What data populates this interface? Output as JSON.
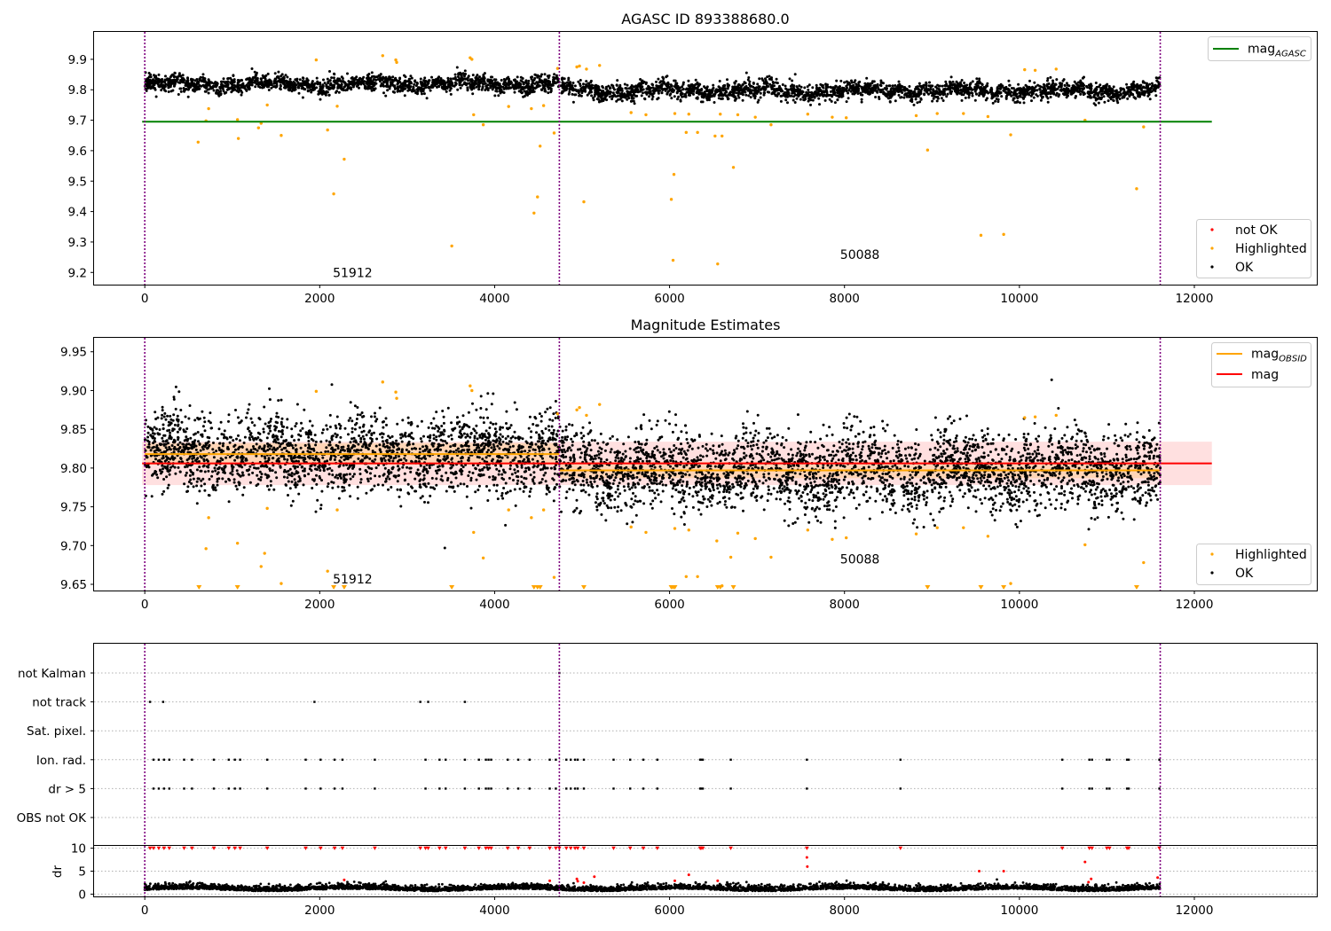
{
  "figure": {
    "title_top": "AGASC ID 893388680.0",
    "title_mid": "Magnitude Estimates"
  },
  "chart_data": [
    {
      "type": "scatter",
      "panel": "top",
      "title": "AGASC ID 893388680.0",
      "xlim": [
        -580,
        13400
      ],
      "ylim": [
        9.16,
        9.99
      ],
      "xticks": [
        0,
        2000,
        4000,
        6000,
        8000,
        10000,
        12000
      ],
      "yticks": [
        9.2,
        9.3,
        9.4,
        9.5,
        9.6,
        9.7,
        9.8,
        9.9
      ],
      "vlines": [
        0,
        4740,
        11610
      ],
      "obs_labels": [
        {
          "text": "51912",
          "x": 2150,
          "y": 9.185
        },
        {
          "text": "50088",
          "x": 7950,
          "y": 9.245
        }
      ],
      "lines": [
        {
          "name": "mag_{AGASC}",
          "color": "#008000",
          "y": 9.695,
          "x0": -30,
          "x1": 12200
        }
      ],
      "legend_lines": [
        "mag",
        "AGASC"
      ],
      "legend_points": [
        "not OK",
        "Highlighted",
        "OK"
      ],
      "colors": {
        "ok": "#000000",
        "highlighted": "#ffa500",
        "not_ok": "#ff0000",
        "vline": "#800080"
      },
      "ok_band": {
        "x": [
          0,
          11610
        ],
        "segments": [
          {
            "x": [
              0,
              4740
            ],
            "mean": 9.818
          },
          {
            "x": [
              4740,
              11610
            ],
            "mean": 9.797
          }
        ],
        "spread": 0.025
      },
      "highlighted": [
        [
          610,
          9.628
        ],
        [
          700,
          9.698
        ],
        [
          730,
          9.738
        ],
        [
          1060,
          9.702
        ],
        [
          1070,
          9.64
        ],
        [
          1300,
          9.675
        ],
        [
          1330,
          9.69
        ],
        [
          1400,
          9.75
        ],
        [
          1560,
          9.65
        ],
        [
          1960,
          9.898
        ],
        [
          2090,
          9.668
        ],
        [
          2160,
          9.458
        ],
        [
          2200,
          9.746
        ],
        [
          2280,
          9.572
        ],
        [
          2720,
          9.912
        ],
        [
          2870,
          9.898
        ],
        [
          2880,
          9.89
        ],
        [
          3510,
          9.287
        ],
        [
          3720,
          9.905
        ],
        [
          3740,
          9.9
        ],
        [
          3760,
          9.718
        ],
        [
          3870,
          9.685
        ],
        [
          4160,
          9.745
        ],
        [
          4420,
          9.738
        ],
        [
          4450,
          9.395
        ],
        [
          4490,
          9.448
        ],
        [
          4520,
          9.615
        ],
        [
          4560,
          9.748
        ],
        [
          4680,
          9.658
        ],
        [
          4720,
          9.87
        ],
        [
          4940,
          9.875
        ],
        [
          4970,
          9.878
        ],
        [
          5020,
          9.432
        ],
        [
          5050,
          9.868
        ],
        [
          5200,
          9.88
        ],
        [
          5560,
          9.725
        ],
        [
          5730,
          9.718
        ],
        [
          6020,
          9.44
        ],
        [
          6040,
          9.24
        ],
        [
          6050,
          9.522
        ],
        [
          6060,
          9.722
        ],
        [
          6190,
          9.66
        ],
        [
          6220,
          9.72
        ],
        [
          6320,
          9.66
        ],
        [
          6520,
          9.648
        ],
        [
          6550,
          9.228
        ],
        [
          6580,
          9.72
        ],
        [
          6600,
          9.648
        ],
        [
          6730,
          9.545
        ],
        [
          6780,
          9.718
        ],
        [
          6980,
          9.71
        ],
        [
          7160,
          9.685
        ],
        [
          7580,
          9.72
        ],
        [
          7860,
          9.71
        ],
        [
          8020,
          9.708
        ],
        [
          8820,
          9.715
        ],
        [
          8950,
          9.602
        ],
        [
          9060,
          9.722
        ],
        [
          9360,
          9.722
        ],
        [
          9560,
          9.322
        ],
        [
          9640,
          9.712
        ],
        [
          9820,
          9.325
        ],
        [
          9900,
          9.652
        ],
        [
          10060,
          9.866
        ],
        [
          10180,
          9.864
        ],
        [
          10420,
          9.868
        ],
        [
          10750,
          9.7
        ],
        [
          11340,
          9.475
        ],
        [
          11420,
          9.678
        ]
      ]
    },
    {
      "type": "scatter",
      "panel": "middle",
      "title": "Magnitude Estimates",
      "xlim": [
        -580,
        13400
      ],
      "ylim": [
        9.642,
        9.968
      ],
      "xticks": [
        0,
        2000,
        4000,
        6000,
        8000,
        10000,
        12000
      ],
      "yticks": [
        9.65,
        9.7,
        9.75,
        9.8,
        9.85,
        9.9,
        9.95
      ],
      "ytick_labels": [
        "9.65",
        "9.70",
        "9.75",
        "9.80",
        "9.85",
        "9.90",
        "9.95"
      ],
      "vlines": [
        0,
        4740,
        11610
      ],
      "obs_labels": [
        {
          "text": "51912",
          "x": 2150,
          "y": 9.651
        },
        {
          "text": "50088",
          "x": 7950,
          "y": 9.677
        }
      ],
      "mag_line": {
        "y": 9.806,
        "color": "#ff0000",
        "band": [
          9.778,
          9.834
        ],
        "x0": -30,
        "x1": 12200
      },
      "mag_obsid": [
        {
          "x": [
            0,
            4740
          ],
          "y": 9.818,
          "band": [
            9.804,
            9.832
          ]
        },
        {
          "x": [
            4740,
            11610
          ],
          "y": 9.797,
          "band": [
            9.787,
            9.808
          ]
        }
      ],
      "legend_lines": [
        {
          "name": "mag",
          "sub": "OBSID",
          "color": "#ffa500"
        },
        {
          "name": "mag",
          "sub": "",
          "color": "#ff0000"
        }
      ],
      "legend_points": [
        "Highlighted",
        "OK"
      ],
      "down_markers_x": [
        620,
        1060,
        2160,
        2280,
        3510,
        4450,
        4490,
        4520,
        5020,
        6020,
        6040,
        6060,
        6550,
        6580,
        6730,
        8950,
        9560,
        9820,
        11340
      ],
      "colors": {
        "ok": "#000000",
        "highlighted": "#ffa500",
        "band_red": "#ff0000",
        "band_orange": "#ffa500",
        "vline": "#800080"
      },
      "highlighted": [
        [
          700,
          9.696
        ],
        [
          730,
          9.736
        ],
        [
          1060,
          9.703
        ],
        [
          1330,
          9.673
        ],
        [
          1370,
          9.69
        ],
        [
          1400,
          9.748
        ],
        [
          1560,
          9.651
        ],
        [
          1960,
          9.899
        ],
        [
          2090,
          9.667
        ],
        [
          2200,
          9.746
        ],
        [
          2720,
          9.911
        ],
        [
          2870,
          9.898
        ],
        [
          2880,
          9.89
        ],
        [
          3720,
          9.906
        ],
        [
          3740,
          9.9
        ],
        [
          3760,
          9.717
        ],
        [
          3870,
          9.684
        ],
        [
          4160,
          9.746
        ],
        [
          4420,
          9.736
        ],
        [
          4560,
          9.746
        ],
        [
          4680,
          9.659
        ],
        [
          4720,
          9.87
        ],
        [
          4940,
          9.875
        ],
        [
          4970,
          9.878
        ],
        [
          5050,
          9.868
        ],
        [
          5200,
          9.882
        ],
        [
          5560,
          9.724
        ],
        [
          5730,
          9.717
        ],
        [
          6060,
          9.722
        ],
        [
          6190,
          9.66
        ],
        [
          6220,
          9.72
        ],
        [
          6320,
          9.66
        ],
        [
          6540,
          9.706
        ],
        [
          6600,
          9.648
        ],
        [
          6700,
          9.685
        ],
        [
          6780,
          9.716
        ],
        [
          6980,
          9.709
        ],
        [
          7160,
          9.685
        ],
        [
          7580,
          9.72
        ],
        [
          7860,
          9.708
        ],
        [
          8020,
          9.71
        ],
        [
          8820,
          9.715
        ],
        [
          9060,
          9.723
        ],
        [
          9360,
          9.723
        ],
        [
          9640,
          9.712
        ],
        [
          9900,
          9.651
        ],
        [
          10060,
          9.865
        ],
        [
          10180,
          9.866
        ],
        [
          10420,
          9.868
        ],
        [
          10750,
          9.701
        ],
        [
          11420,
          9.678
        ]
      ]
    },
    {
      "type": "scatter",
      "panel": "flags",
      "xlim": [
        -580,
        13400
      ],
      "categories": [
        "not Kalman",
        "not track",
        "Sat. pixel.",
        "Ion. rad.",
        "dr > 5",
        "OBS not OK"
      ],
      "vlines": [
        0,
        4740,
        11610
      ],
      "flag_points": {
        "not Kalman": [
          4740
        ],
        "not track": [
          60,
          210,
          1940,
          3150,
          3240,
          3660
        ],
        "Sat. pixel.": [],
        "Ion. rad.": [
          100,
          160,
          220,
          280,
          450,
          540,
          790,
          960,
          1030,
          1090,
          1400,
          1840,
          2010,
          2170,
          2260,
          2630,
          3210,
          3370,
          3440,
          3660,
          3820,
          3900,
          3930,
          3960,
          4150,
          4270,
          4400,
          4630,
          4700,
          4820,
          4870,
          4920,
          4950,
          5020,
          5360,
          5550,
          5700,
          5860,
          6350,
          6360,
          6380,
          6700,
          7570,
          8640,
          10490,
          10800,
          10830,
          11000,
          11030,
          11230,
          11250,
          11600
        ],
        "dr > 5": [
          100,
          160,
          220,
          280,
          450,
          540,
          790,
          960,
          1030,
          1090,
          1400,
          1840,
          2010,
          2170,
          2260,
          2630,
          3210,
          3370,
          3440,
          3660,
          3820,
          3900,
          3930,
          3960,
          4150,
          4270,
          4400,
          4630,
          4700,
          4820,
          4870,
          4920,
          4950,
          5020,
          5360,
          5550,
          5700,
          5860,
          6350,
          6360,
          6380,
          6700,
          7570,
          8640,
          10490,
          10800,
          10830,
          11000,
          11030,
          11230,
          11250,
          11600
        ],
        "OBS not OK": []
      },
      "colors": {
        "points": "#000000",
        "grid": "#b0b0b0",
        "vline": "#800080"
      }
    },
    {
      "type": "scatter",
      "panel": "dr",
      "xlim": [
        -580,
        13400
      ],
      "ylim": [
        -0.5,
        10.5
      ],
      "ylabel": "dr",
      "yticks": [
        0,
        5,
        10
      ],
      "xticks": [
        0,
        2000,
        4000,
        6000,
        8000,
        10000,
        12000
      ],
      "vlines": [
        0,
        4740,
        11610
      ],
      "ok_mean": 1.2,
      "ok_spread": 0.9,
      "red_at_10_x": [
        60,
        100,
        160,
        220,
        280,
        450,
        540,
        790,
        960,
        1030,
        1090,
        1400,
        1840,
        2010,
        2170,
        2260,
        2630,
        3150,
        3210,
        3240,
        3370,
        3440,
        3660,
        3820,
        3900,
        3930,
        3960,
        4150,
        4270,
        4400,
        4630,
        4700,
        4740,
        4820,
        4870,
        4920,
        4950,
        5020,
        5360,
        5550,
        5700,
        5860,
        6350,
        6360,
        6380,
        6700,
        7570,
        8640,
        10490,
        10800,
        10830,
        11000,
        11030,
        11230,
        11250,
        11600
      ],
      "red_other": [
        [
          4940,
          3.3
        ],
        [
          4950,
          2.8
        ],
        [
          5020,
          2.5
        ],
        [
          5140,
          3.8
        ],
        [
          6060,
          2.9
        ],
        [
          6220,
          4.2
        ],
        [
          6550,
          2.9
        ],
        [
          7570,
          8.0
        ],
        [
          7575,
          6.0
        ],
        [
          9540,
          5.0
        ],
        [
          9820,
          5.0
        ],
        [
          10750,
          7.0
        ],
        [
          10820,
          3.3
        ],
        [
          10790,
          2.6
        ],
        [
          11580,
          3.6
        ],
        [
          2280,
          3.1
        ],
        [
          4630,
          2.9
        ]
      ],
      "colors": {
        "ok": "#000000",
        "not_ok": "#ff0000",
        "grid": "#b0b0b0",
        "vline": "#800080"
      }
    }
  ]
}
